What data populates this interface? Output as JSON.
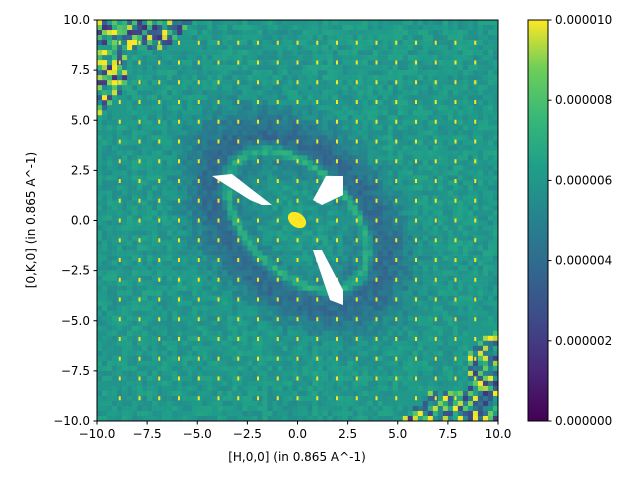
{
  "chart_data": {
    "type": "heatmap",
    "title": "",
    "xlabel": "[H,0,0] (in 0.865 A^-1)",
    "ylabel": "[0,K,0] (in 0.865 A^-1)",
    "xlim": [
      -10,
      10
    ],
    "ylim": [
      -10,
      10
    ],
    "xticks": [
      -10,
      -7.5,
      -5,
      -2.5,
      0,
      2.5,
      5,
      7.5,
      10
    ],
    "xtick_labels": [
      "−10.0",
      "−7.5",
      "−5.0",
      "−2.5",
      "0.0",
      "2.5",
      "5.0",
      "7.5",
      "10.0"
    ],
    "yticks": [
      -10,
      -7.5,
      -5,
      -2.5,
      0,
      2.5,
      5,
      7.5,
      10
    ],
    "ytick_labels": [
      "−10.0",
      "−7.5",
      "−5.0",
      "−2.5",
      "0.0",
      "2.5",
      "5.0",
      "7.5",
      "10.0"
    ],
    "colormap": "viridis",
    "colorbar": {
      "range": [
        0,
        1e-05
      ],
      "ticks": [
        0,
        2e-06,
        4e-06,
        6e-06,
        8e-06,
        1e-05
      ],
      "tick_labels": [
        "0.000000",
        "0.000002",
        "0.000004",
        "0.000006",
        "0.000008",
        "0.000010"
      ]
    },
    "grid": false
  }
}
